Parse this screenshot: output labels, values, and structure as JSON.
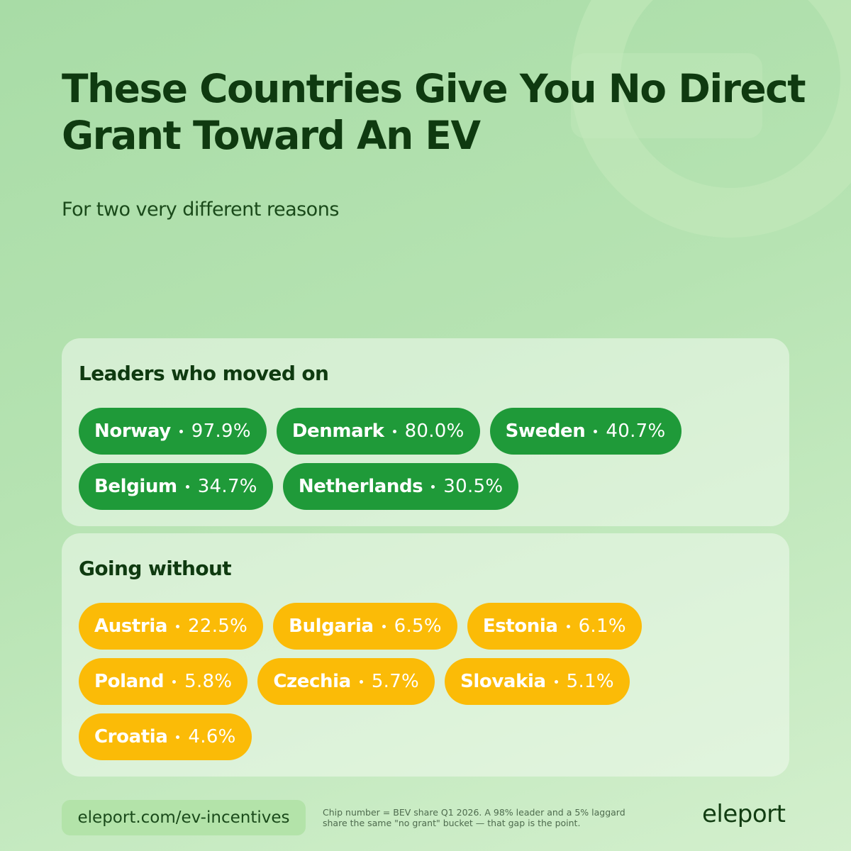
{
  "header": {
    "title": "These Countries Give You No Direct Grant Toward An EV",
    "subtitle": "For two very different reasons"
  },
  "groups": [
    {
      "heading": "Leaders who moved on",
      "style": "leader",
      "chips": [
        {
          "country": "Norway",
          "share": "97.9%"
        },
        {
          "country": "Denmark",
          "share": "80.0%"
        },
        {
          "country": "Sweden",
          "share": "40.7%"
        },
        {
          "country": "Belgium",
          "share": "34.7%"
        },
        {
          "country": "Netherlands",
          "share": "30.5%"
        }
      ]
    },
    {
      "heading": "Going without",
      "style": "laggard",
      "chips": [
        {
          "country": "Austria",
          "share": "22.5%"
        },
        {
          "country": "Bulgaria",
          "share": "6.5%"
        },
        {
          "country": "Estonia",
          "share": "6.1%"
        },
        {
          "country": "Poland",
          "share": "5.8%"
        },
        {
          "country": "Czechia",
          "share": "5.7%"
        },
        {
          "country": "Slovakia",
          "share": "5.1%"
        },
        {
          "country": "Croatia",
          "share": "4.6%"
        }
      ]
    }
  ],
  "footer": {
    "link": "eleport.com/ev-incentives",
    "note": [
      "Chip number = BEV share Q1 2026. A 98% leader and a 5% laggard",
      "share the same \"no grant\" bucket — that gap is the point."
    ],
    "logo": "eleport"
  }
}
